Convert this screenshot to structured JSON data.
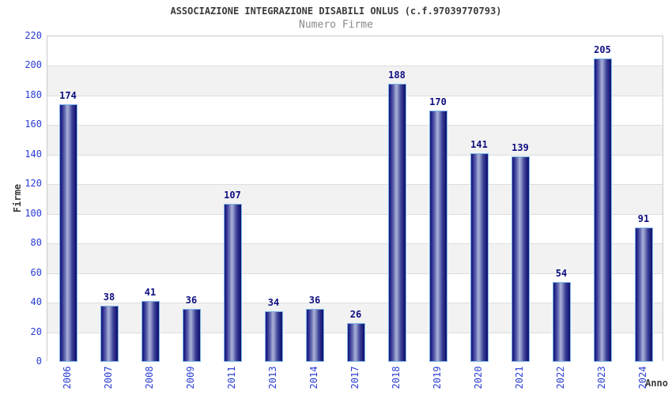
{
  "chart_data": {
    "type": "bar",
    "title": "ASSOCIAZIONE INTEGRAZIONE DISABILI ONLUS (c.f.97039770793)",
    "subtitle": "Numero Firme",
    "xlabel": "Anno",
    "ylabel": "Firme",
    "categories": [
      "2006",
      "2007",
      "2008",
      "2009",
      "2011",
      "2013",
      "2014",
      "2017",
      "2018",
      "2019",
      "2020",
      "2021",
      "2022",
      "2023",
      "2024"
    ],
    "values": [
      174,
      38,
      41,
      36,
      107,
      34,
      36,
      26,
      188,
      170,
      141,
      139,
      54,
      205,
      91
    ],
    "ylim": [
      0,
      220
    ],
    "ytick_step": 20,
    "yticks": [
      0,
      20,
      40,
      60,
      80,
      100,
      120,
      140,
      160,
      180,
      200,
      220
    ],
    "grid": true,
    "band_striping": true,
    "legend_position": "none",
    "bar_value_labels": true,
    "colors": {
      "background": "#ffffff",
      "title": "#3b3b3b",
      "subtitle": "#8a8a8a",
      "axis_title": "#3b3b3b",
      "tick_label": "#2a3cd2",
      "value_label": "#0f0f80",
      "bar_dark": "#1a1a78",
      "bar_light": "#abb1d8",
      "bar_border": "#79b5ea",
      "band_alt": "#f2f2f2",
      "gridline": "#dedede",
      "plot_border": "#c9c9c9"
    }
  }
}
